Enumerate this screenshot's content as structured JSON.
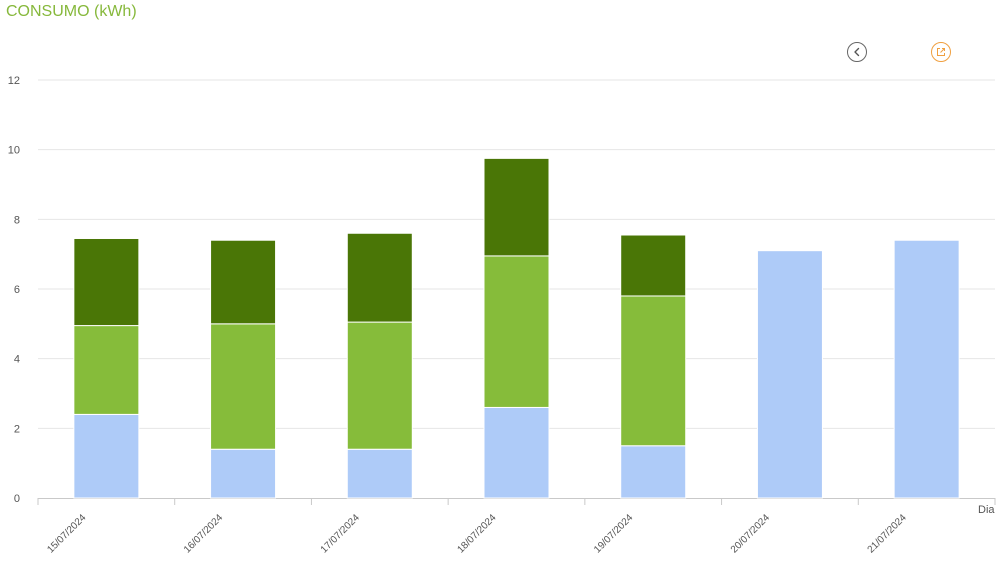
{
  "title": "CONSUMO (kWh)",
  "icons": {
    "back": "chevron-left-icon",
    "export": "export-icon"
  },
  "colors": {
    "title": "#86b83b",
    "series_1": "#aecbf8",
    "series_2": "#86bc3a",
    "series_3": "#4a7606"
  },
  "chart_data": {
    "type": "bar",
    "stacked": true,
    "categories": [
      "15/07/2024",
      "16/07/2024",
      "17/07/2024",
      "18/07/2024",
      "19/07/2024",
      "20/07/2024",
      "21/07/2024"
    ],
    "series": [
      {
        "values": [
          2.4,
          1.4,
          1.4,
          2.6,
          1.5,
          7.1,
          7.4
        ],
        "color": "#aecbf8"
      },
      {
        "values": [
          2.55,
          3.6,
          3.65,
          4.35,
          4.3,
          0,
          0
        ],
        "color": "#86bc3a"
      },
      {
        "values": [
          2.5,
          2.4,
          2.55,
          2.8,
          1.75,
          0,
          0
        ],
        "color": "#4a7606"
      }
    ],
    "xlabel": "Dia",
    "ylabel": "",
    "ylim": [
      0,
      12
    ],
    "yticks": [
      0,
      2,
      4,
      6,
      8,
      10,
      12
    ],
    "grid": true
  }
}
